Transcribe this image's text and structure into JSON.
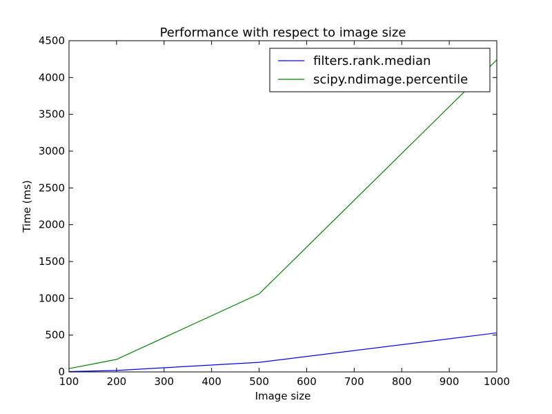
{
  "chart_data": {
    "type": "line",
    "title": "Performance with respect to image size",
    "x_label": "Image size",
    "y_label": "Time (ms)",
    "x": [
      100,
      200,
      500,
      1000
    ],
    "series": [
      {
        "name": "filters.rank.median",
        "color": "#0000ff",
        "values": [
          5,
          20,
          130,
          530
        ]
      },
      {
        "name": "scipy.ndimage.percentile",
        "color": "#008000",
        "values": [
          45,
          170,
          1060,
          4240
        ]
      }
    ],
    "xlim": [
      100,
      1000
    ],
    "xticks": [
      100,
      200,
      300,
      400,
      500,
      600,
      700,
      800,
      900,
      1000
    ],
    "ylim": [
      0,
      4500
    ],
    "yticks": [
      0,
      500,
      1000,
      1500,
      2000,
      2500,
      3000,
      3500,
      4000,
      4500
    ],
    "legend": "upper right",
    "grid": false
  }
}
